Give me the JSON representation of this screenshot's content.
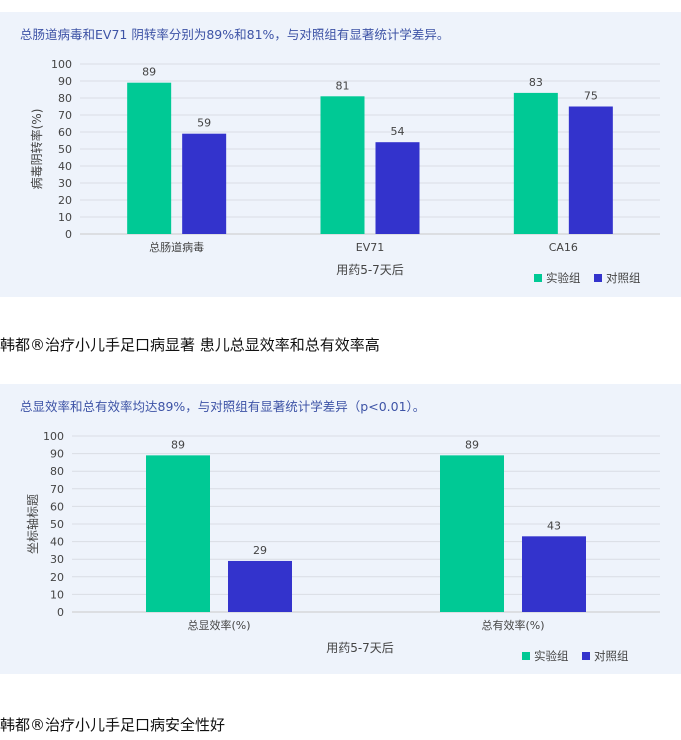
{
  "chart_data": [
    {
      "type": "bar",
      "note": "总肠道病毒和EV71 阴转率分别为89%和81%，与对照组有显著统计学差异。",
      "categories": [
        "总肠道病毒",
        "EV71",
        "CA16"
      ],
      "series": [
        {
          "name": "实验组",
          "values": [
            89,
            81,
            83
          ]
        },
        {
          "name": "对照组",
          "values": [
            59,
            54,
            75
          ]
        }
      ],
      "xlabel": "用药5-7天后",
      "ylabel": "病毒阴转率(%)",
      "ylim": [
        0,
        100
      ],
      "yticks": [
        "0",
        "10",
        "20",
        "30",
        "40",
        "50",
        "60",
        "70",
        "80",
        "90",
        "100"
      ],
      "grid": true,
      "legend": "bottom-right",
      "colors": [
        "#00c995",
        "#3333cc"
      ]
    },
    {
      "type": "bar",
      "note": "总显效率和总有效率均达89%，与对照组有显著统计学差异（p<0.01）。",
      "categories": [
        "总显效率(%)",
        "总有效率(%)"
      ],
      "series": [
        {
          "name": "实验组",
          "values": [
            89,
            89
          ]
        },
        {
          "name": "对照组",
          "values": [
            29,
            43
          ]
        }
      ],
      "xlabel": "用药5-7天后",
      "ylabel": "坐标轴标题",
      "ylim": [
        0,
        100
      ],
      "yticks": [
        "0",
        "10",
        "20",
        "30",
        "40",
        "50",
        "60",
        "70",
        "80",
        "90",
        "100"
      ],
      "grid": true,
      "legend": "bottom-right",
      "colors": [
        "#00c995",
        "#3333cc"
      ]
    }
  ],
  "captions": {
    "first": "韩都®治疗小儿手足口病显著 患儿总显效率和总有效率高",
    "second": "韩都®治疗小儿手足口病安全性好"
  }
}
